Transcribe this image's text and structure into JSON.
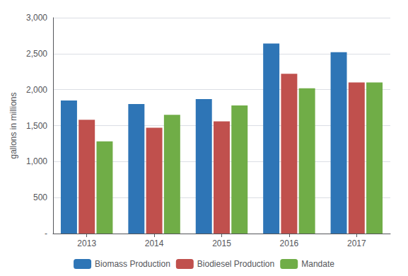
{
  "chart_data": {
    "type": "bar",
    "categories": [
      "2013",
      "2014",
      "2015",
      "2016",
      "2017"
    ],
    "series": [
      {
        "name": "Biomass Production",
        "color": "#2E75B6",
        "values": [
          1850,
          1800,
          1870,
          2640,
          2520
        ]
      },
      {
        "name": "Biodiesel Production",
        "color": "#C0504D",
        "values": [
          1580,
          1470,
          1560,
          2220,
          2100
        ]
      },
      {
        "name": "Mandate",
        "color": "#70AD47",
        "values": [
          1280,
          1650,
          1780,
          2020,
          2100
        ]
      }
    ],
    "ylabel": "gallons in millions",
    "ylim": [
      0,
      3000
    ],
    "yticks": [
      {
        "value": 0,
        "label": "-"
      },
      500,
      {
        "value": 1000,
        "label": "1,000"
      },
      {
        "value": 1500,
        "label": "1,500"
      },
      {
        "value": 2000,
        "label": "2,000"
      },
      {
        "value": 2500,
        "label": "2,500"
      },
      {
        "value": 3000,
        "label": "3,000"
      }
    ],
    "grid": true,
    "legend": "bottom"
  }
}
